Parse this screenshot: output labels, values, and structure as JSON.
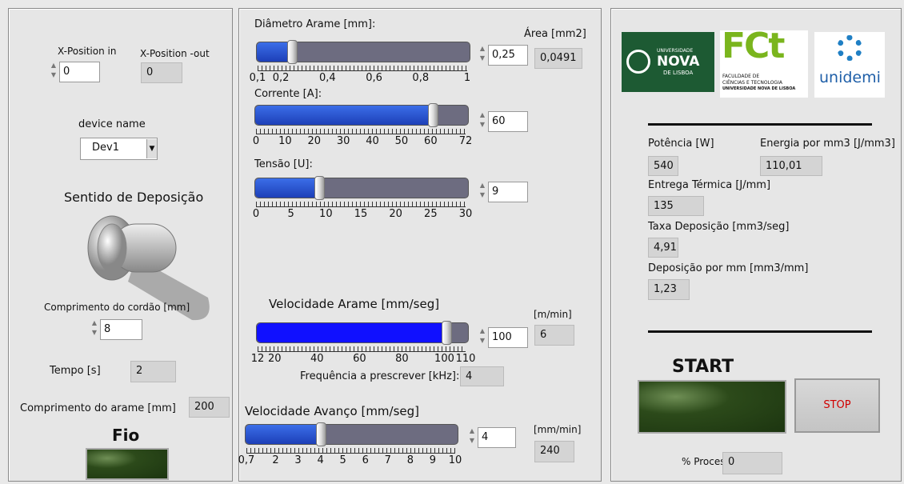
{
  "left": {
    "x_position_in": {
      "label": "X-Position in",
      "value": "0"
    },
    "x_position_out": {
      "label": "X-Position -out",
      "value": "0"
    },
    "device_name": {
      "label": "device name",
      "value": "Dev1"
    },
    "sentido": "Sentido de Deposição",
    "comprimento_cordao": {
      "label": "Comprimento do cordão [mm]",
      "value": "8"
    },
    "tempo": {
      "label": "Tempo [s]",
      "value": "2"
    },
    "comprimento_arame": {
      "label": "Comprimento do arame  [mm]",
      "value": "200"
    },
    "fio": "Fio"
  },
  "sliders": [
    {
      "label": "Diâmetro Arame [mm]:",
      "value": "0,25",
      "ticks": [
        "0,1",
        "0,2",
        "0,4",
        "0,6",
        "0,8",
        "1"
      ]
    },
    {
      "label": "Corrente [A]:",
      "value": "60",
      "ticks": [
        "0",
        "10",
        "20",
        "30",
        "40",
        "50",
        "60",
        "72"
      ]
    },
    {
      "label": "Tensão [U]:",
      "value": "9",
      "ticks": [
        "0",
        "5",
        "10",
        "15",
        "20",
        "25",
        "30"
      ]
    },
    {
      "label": "Velocidade Arame [mm/seg]",
      "value": "100",
      "ticks": [
        "12",
        "20",
        "40",
        "60",
        "80",
        "100",
        "110"
      ]
    },
    {
      "label": "Velocidade Avanço [mm/seg]",
      "value": "4",
      "ticks": [
        "0,7",
        "2",
        "3",
        "4",
        "5",
        "6",
        "7",
        "8",
        "9",
        "10"
      ]
    }
  ],
  "area": {
    "label": "Área [mm2]",
    "value": "0,0491"
  },
  "velocidade_m_min": {
    "label": "[m/min]",
    "value": "6"
  },
  "frequencia": {
    "label": "Frequência a prescrever [kHz]:",
    "value": "4"
  },
  "avanco_mm_min": {
    "label": "[mm/min]",
    "value": "240"
  },
  "logos": {
    "nova_top": "UNIVERSIDADE",
    "nova": "NOVA",
    "nova_bottom": "DE LISBOA",
    "fct": "FCt",
    "fct_line1": "FACULDADE DE",
    "fct_line2": "CIÊNCIAS E TECNOLOGIA",
    "fct_line3": "UNIVERSIDADE NOVA DE LISBOA",
    "unidemi": "unidemi"
  },
  "results": {
    "potencia": {
      "label": "Potência [W]",
      "value": "540"
    },
    "energia": {
      "label": "Energia por mm3 [J/mm3]",
      "value": "110,01"
    },
    "entrega": {
      "label": "Entrega Térmica [J/mm]",
      "value": "135"
    },
    "taxa": {
      "label": "Taxa Deposição [mm3/seg]",
      "value": "4,91"
    },
    "deposicao": {
      "label": "Deposição por mm [mm3/mm]",
      "value": "1,23"
    }
  },
  "start": "START",
  "stop": "STOP",
  "processo": {
    "label": "% Processo",
    "value": "0"
  }
}
